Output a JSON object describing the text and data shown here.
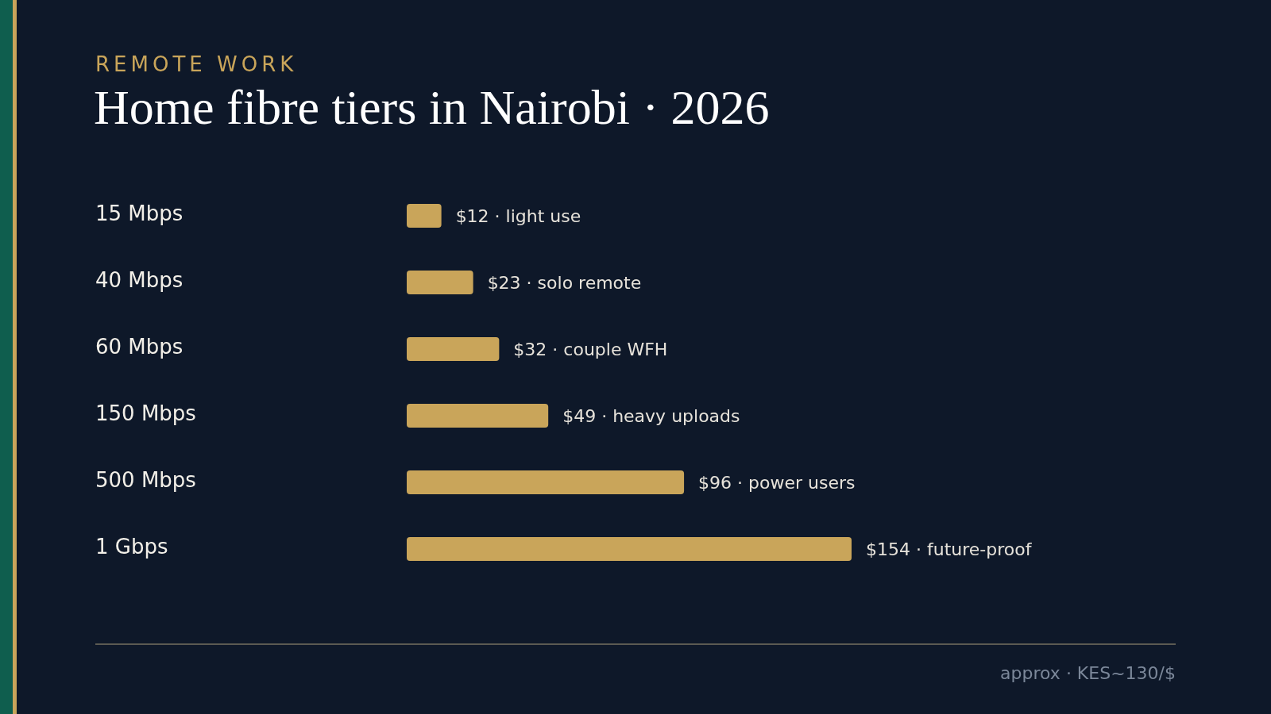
{
  "chart_data": {
    "type": "bar",
    "orientation": "horizontal",
    "subtitle": "REMOTE WORK",
    "title": "Home fibre tiers in Nairobi · 2026",
    "categories": [
      "15 Mbps",
      "40 Mbps",
      "60 Mbps",
      "150 Mbps",
      "500 Mbps",
      "1 Gbps"
    ],
    "values": [
      12,
      23,
      32,
      49,
      96,
      154
    ],
    "value_labels": [
      "$12 · light use",
      "$23 · solo remote",
      "$32 · couple WFH",
      "$49 · heavy uploads",
      "$96 · power users",
      "$154 · future-proof"
    ],
    "color": "#c9a55a",
    "annotations": [
      "approx · KES~130/$"
    ]
  }
}
